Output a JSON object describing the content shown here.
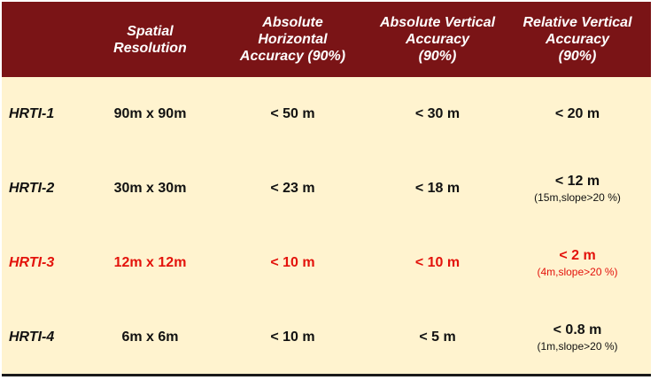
{
  "header": {
    "col1": "",
    "col2": "Spatial\nResolution",
    "col3": "Absolute\nHorizontal\nAccuracy (90%)",
    "col4": "Absolute Vertical\nAccuracy\n(90%)",
    "col5": "Relative Vertical\nAccuracy\n(90%)"
  },
  "rows": [
    {
      "name": "HRTI-1",
      "resolution": "90m x 90m",
      "horizontal": "< 50 m",
      "absolute_vertical": "< 30 m",
      "relative_vertical": "< 20 m",
      "relative_note": ""
    },
    {
      "name": "HRTI-2",
      "resolution": "30m x 30m",
      "horizontal": "< 23 m",
      "absolute_vertical": "< 18 m",
      "relative_vertical": "< 12 m",
      "relative_note": "(15m,slope>20 %)"
    },
    {
      "name": "HRTI-3",
      "resolution": "12m x 12m",
      "horizontal": "< 10 m",
      "absolute_vertical": "< 10 m",
      "relative_vertical": "< 2 m",
      "relative_note": "(4m,slope>20 %)"
    },
    {
      "name": "HRTI-4",
      "resolution": "6m x 6m",
      "horizontal": "< 10 m",
      "absolute_vertical": "< 5 m",
      "relative_vertical": "< 0.8 m",
      "relative_note": "(1m,slope>20 %)"
    }
  ],
  "colors": {
    "header_bg": "#7a1416",
    "body_bg": "#fff3cf",
    "highlight_text": "#e3120b"
  }
}
